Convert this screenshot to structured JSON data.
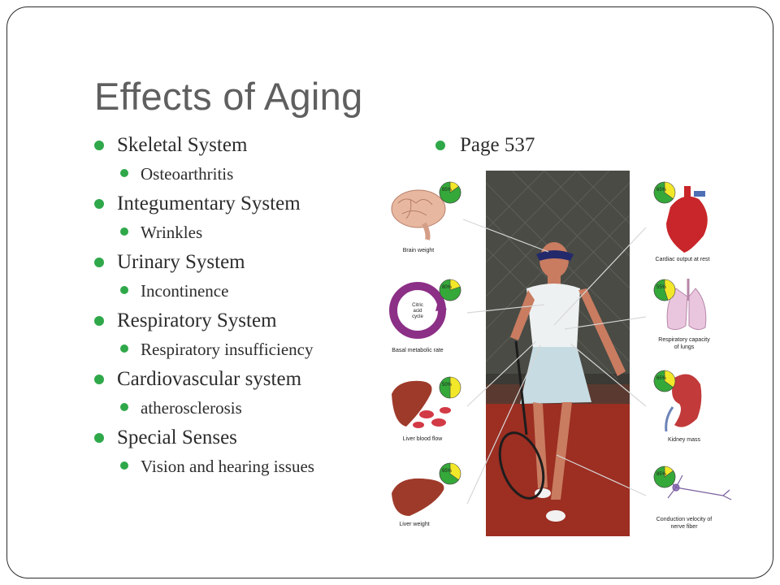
{
  "slide": {
    "title": "Effects of Aging",
    "bullets": [
      {
        "label": "Skeletal System",
        "sub": "Osteoarthritis"
      },
      {
        "label": "Integumentary System",
        "sub": "Wrinkles"
      },
      {
        "label": "Urinary System",
        "sub": "Incontinence"
      },
      {
        "label": "Respiratory System",
        "sub": "Respiratory insufficiency"
      },
      {
        "label": "Cardiovascular system",
        "sub": "atherosclerosis"
      },
      {
        "label": "Special Senses",
        "sub": "Vision and hearing issues"
      }
    ],
    "right_bullet": "Page 537"
  },
  "figure": {
    "left": [
      {
        "label": "Brain weight",
        "pct": "85%",
        "fraction": 0.85,
        "organ": "brain-icon"
      },
      {
        "label": "Basal metabolic rate",
        "pct": "80%",
        "fraction": 0.8,
        "organ": "citric-acid-cycle-icon",
        "inner": [
          "Citric",
          "acid",
          "cycle"
        ]
      },
      {
        "label": "Liver blood flow",
        "pct": "50%",
        "fraction": 0.5,
        "organ": "liver-blood-icon"
      },
      {
        "label": "Liver weight",
        "pct": "65%",
        "fraction": 0.65,
        "organ": "liver-icon"
      }
    ],
    "right": [
      {
        "label": "Cardiac output at rest",
        "pct": "65%",
        "fraction": 0.65,
        "organ": "heart-icon"
      },
      {
        "label": "Respiratory capacity of lungs",
        "label_lines": [
          "Respiratory capacity",
          "of lungs"
        ],
        "pct": "55%",
        "fraction": 0.55,
        "organ": "lungs-icon"
      },
      {
        "label": "Kidney mass",
        "pct": "65%",
        "fraction": 0.65,
        "organ": "kidney-icon"
      },
      {
        "label": "Conduction velocity of nerve fiber",
        "label_lines": [
          "Conduction velocity of",
          "nerve fiber"
        ],
        "pct": "85%",
        "fraction": 0.85,
        "organ": "neuron-icon"
      }
    ],
    "colors": {
      "pie_filled": "#35a83a",
      "pie_remaining": "#f2e829",
      "bullet": "#2fa84a",
      "court": "#a52a20"
    }
  }
}
